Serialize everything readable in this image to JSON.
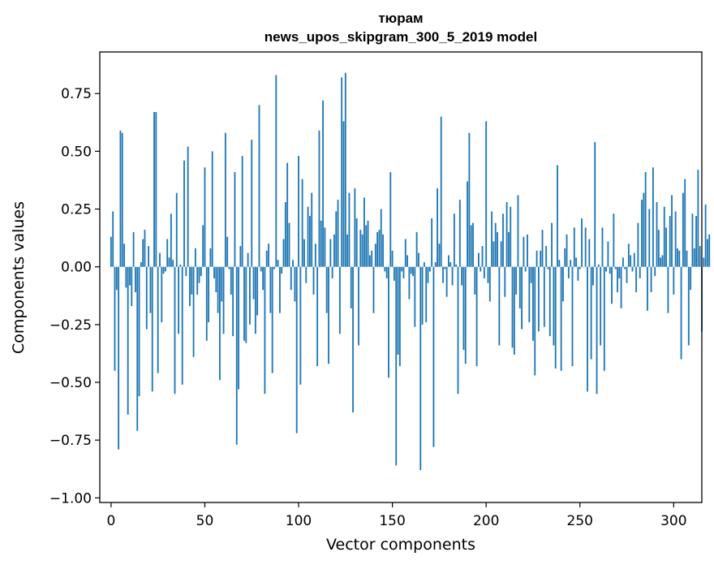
{
  "chart_data": {
    "type": "bar",
    "title": "тюрам",
    "subtitle": "news_upos_skipgram_300_5_2019 model",
    "xlabel": "Vector components",
    "ylabel": "Components values",
    "xlim": [
      -6,
      315
    ],
    "ylim": [
      -1.02,
      0.93
    ],
    "xticks": [
      0,
      50,
      100,
      150,
      200,
      250,
      300
    ],
    "yticks": [
      0.75,
      0.5,
      0.25,
      0.0,
      -0.25,
      -0.5,
      -0.75,
      -1.0
    ],
    "ytick_labels": [
      "0.75",
      "0.50",
      "0.25",
      "0.00",
      "−0.25",
      "−0.50",
      "−0.75",
      "−1.00"
    ],
    "bar_color": "#1f77b4",
    "values": [
      0.13,
      0.24,
      -0.45,
      -0.1,
      -0.79,
      0.59,
      0.58,
      0.1,
      -0.09,
      -0.64,
      -0.08,
      -0.17,
      0.15,
      -0.11,
      -0.71,
      -0.56,
      0.02,
      0.12,
      0.16,
      -0.27,
      0.09,
      -0.2,
      -0.54,
      0.67,
      0.67,
      -0.46,
      0.06,
      -0.24,
      -0.03,
      -0.02,
      0.12,
      0.04,
      0.23,
      0.03,
      -0.55,
      0.32,
      -0.29,
      0.01,
      -0.51,
      0.46,
      -0.04,
      0.52,
      -0.17,
      -0.12,
      -0.39,
      0.08,
      -0.12,
      -0.07,
      -0.04,
      0.18,
      0.43,
      -0.32,
      -0.24,
      0.08,
      0.5,
      -0.05,
      -0.11,
      -0.2,
      -0.49,
      -0.15,
      -0.29,
      0.58,
      0.13,
      -0.01,
      -0.12,
      -0.3,
      0.41,
      -0.77,
      -0.53,
      0.09,
      0.48,
      -0.32,
      -0.33,
      0.06,
      -0.25,
      0.55,
      -0.14,
      -0.29,
      -0.21,
      0.7,
      -0.02,
      -0.1,
      -0.55,
      0.07,
      0.1,
      -0.2,
      -0.46,
      -0.01,
      0.83,
      0.03,
      -0.2,
      -0.03,
      0.12,
      0.28,
      0.45,
      0.19,
      -0.1,
      0.03,
      -0.15,
      -0.72,
      0.48,
      -0.51,
      0.38,
      0.12,
      -0.07,
      0.26,
      0.22,
      0.32,
      -0.12,
      0.1,
      -0.43,
      0.59,
      0.2,
      0.72,
      0.17,
      -0.2,
      -0.42,
      0.12,
      -0.05,
      0.14,
      0.24,
      0.29,
      -0.29,
      0.82,
      0.63,
      0.84,
      0.14,
      0.32,
      -0.18,
      -0.63,
      0.34,
      0.21,
      -0.34,
      0.16,
      0.14,
      0.3,
      0.18,
      0.2,
      0.05,
      0.07,
      -0.2,
      0.1,
      0.15,
      0.16,
      0.25,
      0.14,
      -0.02,
      -0.05,
      -0.48,
      0.41,
      0.07,
      -0.06,
      -0.86,
      -0.38,
      -0.43,
      -0.02,
      -0.05,
      0.12,
      0.05,
      -0.14,
      -0.03,
      -0.04,
      -0.26,
      0.15,
      0.06,
      -0.88,
      -0.25,
      0.02,
      -0.24,
      -0.07,
      -0.02,
      0.21,
      -0.78,
      0.02,
      0.34,
      0.1,
      0.65,
      -0.07,
      -0.01,
      -0.13,
      0.05,
      0.02,
      -0.08,
      0.23,
      0.01,
      -0.55,
      0.29,
      -0.08,
      -0.36,
      -0.42,
      0.37,
      0.58,
      0.18,
      0.19,
      -0.12,
      -0.43,
      0.06,
      -0.02,
      0.09,
      -0.05,
      0.63,
      -0.07,
      -0.15,
      0.24,
      0.11,
      0.19,
      0.15,
      -0.34,
      0.11,
      0.23,
      -0.13,
      0.28,
      0.15,
      0.26,
      -0.35,
      -0.38,
      -0.12,
      0.31,
      -0.18,
      -0.27,
      0.13,
      -0.02,
      0.14,
      -0.24,
      -0.07,
      -0.32,
      -0.47,
      0.07,
      -0.28,
      0.07,
      0.16,
      -0.26,
      0.09,
      -0.01,
      -0.3,
      0.19,
      -0.34,
      -0.44,
      0.44,
      0.03,
      -0.45,
      -0.15,
      0.08,
      0.14,
      -0.05,
      0.03,
      -0.43,
      0.17,
      0.04,
      -0.06,
      -0.01,
      0.21,
      0.0,
      0.17,
      -0.54,
      0.12,
      -0.4,
      -0.08,
      0.54,
      -0.55,
      0.01,
      -0.34,
      0.17,
      -0.45,
      -0.02,
      0.11,
      -0.03,
      -0.16,
      0.23,
      -0.01,
      -0.11,
      -0.05,
      -0.18,
      0.04,
      -0.01,
      -0.07,
      0.1,
      0.05,
      -0.02,
      0.06,
      -0.11,
      0.19,
      -0.05,
      0.29,
      0.32,
      0.41,
      -0.19,
      0.25,
      -0.11,
      0.43,
      -0.04,
      0.28,
      0.16,
      0.04,
      0.05,
      0.26,
      0.17,
      -0.2,
      0.22,
      0.31,
      -0.12,
      0.24,
      0.08,
      0.07,
      -0.4,
      0.32,
      0.38,
      0.07,
      -0.34,
      -0.1,
      0.23,
      0.08,
      0.22,
      0.42,
      0.09,
      -0.28,
      0.04,
      0.27,
      0.12,
      0.14
    ]
  }
}
